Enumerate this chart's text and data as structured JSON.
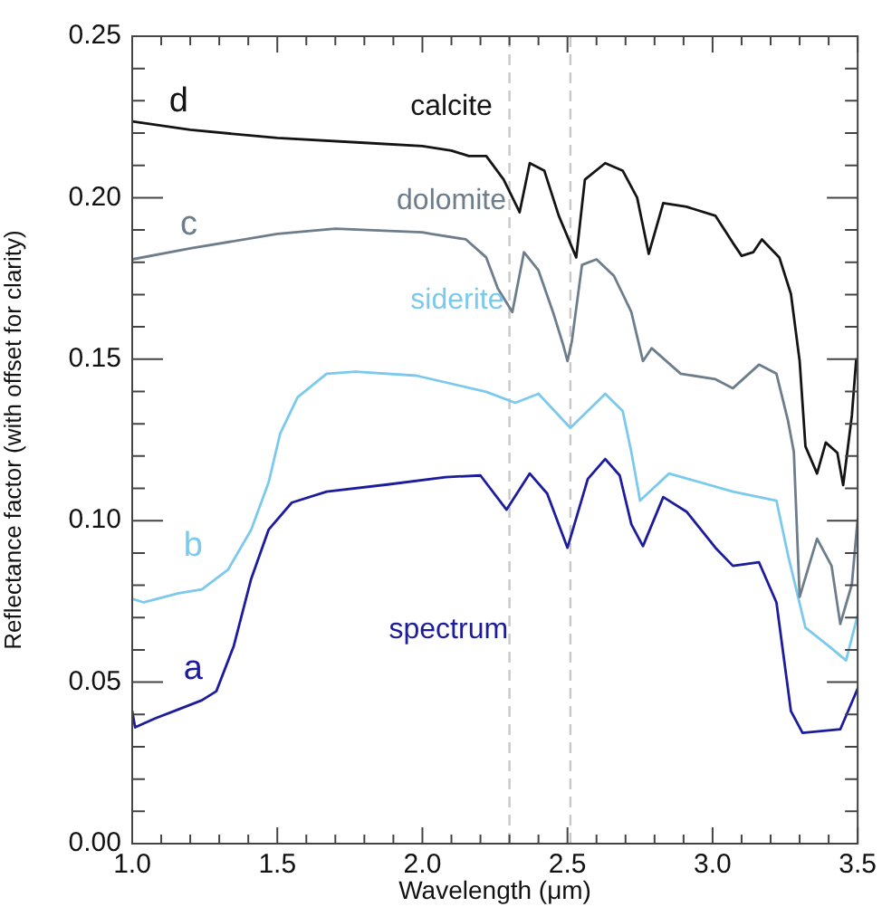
{
  "chart_data": {
    "type": "line",
    "xlabel": "Wavelength (μm)",
    "ylabel": "Reflectance factor (with offset for clarity)",
    "xlim": [
      1.0,
      3.5
    ],
    "ylim": [
      0,
      0.25
    ],
    "xticks": [
      {
        "value": 1,
        "label": "1.0"
      },
      {
        "value": 1.1,
        "label": null
      },
      {
        "value": 1.2,
        "label": null
      },
      {
        "value": 1.3,
        "label": null
      },
      {
        "value": 1.4,
        "label": null
      },
      {
        "value": 1.5,
        "label": "1.5"
      },
      {
        "value": 1.6,
        "label": null
      },
      {
        "value": 1.7,
        "label": null
      },
      {
        "value": 1.8,
        "label": null
      },
      {
        "value": 1.9,
        "label": null
      },
      {
        "value": 2,
        "label": "2.0"
      },
      {
        "value": 2.1,
        "label": null
      },
      {
        "value": 2.2,
        "label": null
      },
      {
        "value": 2.3,
        "label": null
      },
      {
        "value": 2.4,
        "label": null
      },
      {
        "value": 2.5,
        "label": "2.5"
      },
      {
        "value": 2.6,
        "label": null
      },
      {
        "value": 2.7,
        "label": null
      },
      {
        "value": 2.8,
        "label": null
      },
      {
        "value": 2.9,
        "label": null
      },
      {
        "value": 3,
        "label": "3.0"
      },
      {
        "value": 3.1,
        "label": null
      },
      {
        "value": 3.2,
        "label": null
      },
      {
        "value": 3.3,
        "label": null
      },
      {
        "value": 3.4,
        "label": null
      },
      {
        "value": 3.5,
        "label": "3.5"
      }
    ],
    "yticks": [
      {
        "value": 0,
        "label": "0.00"
      },
      {
        "value": 0.01,
        "label": null
      },
      {
        "value": 0.02,
        "label": null
      },
      {
        "value": 0.03,
        "label": null
      },
      {
        "value": 0.04,
        "label": null
      },
      {
        "value": 0.05,
        "label": "0.05"
      },
      {
        "value": 0.06,
        "label": null
      },
      {
        "value": 0.07,
        "label": null
      },
      {
        "value": 0.08,
        "label": null
      },
      {
        "value": 0.09,
        "label": null
      },
      {
        "value": 0.1,
        "label": "0.10"
      },
      {
        "value": 0.11,
        "label": null
      },
      {
        "value": 0.12,
        "label": null
      },
      {
        "value": 0.13,
        "label": null
      },
      {
        "value": 0.14,
        "label": null
      },
      {
        "value": 0.15,
        "label": "0.15"
      },
      {
        "value": 0.16,
        "label": null
      },
      {
        "value": 0.17,
        "label": null
      },
      {
        "value": 0.18,
        "label": null
      },
      {
        "value": 0.19,
        "label": null
      },
      {
        "value": 0.2,
        "label": "0.20"
      },
      {
        "value": 0.21,
        "label": null
      },
      {
        "value": 0.22,
        "label": null
      },
      {
        "value": 0.23,
        "label": null
      },
      {
        "value": 0.24,
        "label": null
      },
      {
        "value": 0.25,
        "label": "0.25"
      }
    ],
    "legend": false,
    "marker": "none",
    "line_style": "solid",
    "ref_lines": [
      {
        "axis": "x",
        "value": 2.3,
        "color": "#c8c8c8",
        "line_style": "dashed"
      },
      {
        "axis": "x",
        "value": 2.51,
        "color": "#c8c8c8",
        "line_style": "dashed"
      }
    ],
    "annotations": [
      "d",
      "c",
      "b",
      "a"
    ],
    "series": [
      {
        "name": "calcite",
        "color": "#141414",
        "x": [
          1.0,
          1.2,
          1.5,
          1.8,
          2.0,
          2.1,
          2.16,
          2.22,
          2.28,
          2.335,
          2.37,
          2.42,
          2.47,
          2.53,
          2.56,
          2.63,
          2.69,
          2.74,
          2.78,
          2.83,
          2.91,
          3.01,
          3.07,
          3.1,
          3.14,
          3.17,
          3.23,
          3.27,
          3.3,
          3.32,
          3.36,
          3.39,
          3.43,
          3.45,
          3.48,
          3.495
        ],
        "values": [
          0.2236,
          0.221,
          0.2185,
          0.217,
          0.216,
          0.2146,
          0.2129,
          0.2129,
          0.2056,
          0.1955,
          0.2107,
          0.2084,
          0.1944,
          0.1815,
          0.2056,
          0.2107,
          0.2084,
          0.2,
          0.1826,
          0.1983,
          0.1972,
          0.1944,
          0.186,
          0.182,
          0.1831,
          0.1871,
          0.1815,
          0.1702,
          0.1494,
          0.123,
          0.1146,
          0.1242,
          0.121,
          0.111,
          0.1326,
          0.15
        ]
      },
      {
        "name": "dolomite",
        "color": "#6d7d8b",
        "x": [
          1.0,
          1.2,
          1.5,
          1.7,
          2.0,
          2.03,
          2.15,
          2.22,
          2.26,
          2.31,
          2.35,
          2.4,
          2.45,
          2.485,
          2.5,
          2.515,
          2.55,
          2.6,
          2.66,
          2.72,
          2.76,
          2.79,
          2.89,
          3.01,
          3.07,
          3.16,
          3.22,
          3.26,
          3.28,
          3.3,
          3.36,
          3.41,
          3.44,
          3.48,
          3.5
        ],
        "values": [
          0.1809,
          0.1843,
          0.1888,
          0.1904,
          0.1893,
          0.1888,
          0.1871,
          0.1815,
          0.1719,
          0.1646,
          0.1831,
          0.1775,
          0.1646,
          0.1545,
          0.1494,
          0.1555,
          0.1792,
          0.1809,
          0.1758,
          0.1646,
          0.1494,
          0.1534,
          0.1455,
          0.1438,
          0.141,
          0.1483,
          0.1455,
          0.1309,
          0.1213,
          0.0764,
          0.0944,
          0.086,
          0.068,
          0.0803,
          0.1006
        ]
      },
      {
        "name": "siderite",
        "color": "#7cc9ee",
        "x": [
          1.0,
          1.04,
          1.16,
          1.24,
          1.33,
          1.41,
          1.47,
          1.51,
          1.57,
          1.67,
          1.77,
          1.98,
          2.22,
          2.32,
          2.4,
          2.51,
          2.63,
          2.69,
          2.72,
          2.75,
          2.85,
          3.07,
          3.22,
          3.26,
          3.32,
          3.4,
          3.46,
          3.5
        ],
        "values": [
          0.0758,
          0.0747,
          0.0775,
          0.0787,
          0.0848,
          0.0972,
          0.1118,
          0.127,
          0.1382,
          0.1455,
          0.1461,
          0.1449,
          0.1399,
          0.1365,
          0.1393,
          0.1287,
          0.1393,
          0.134,
          0.1213,
          0.1062,
          0.1146,
          0.109,
          0.1062,
          0.0893,
          0.0669,
          0.0612,
          0.0567,
          0.0708
        ]
      },
      {
        "name": "spectrum",
        "color": "#1c1c9c",
        "x": [
          1.0,
          1.01,
          1.08,
          1.16,
          1.24,
          1.29,
          1.35,
          1.41,
          1.47,
          1.55,
          1.67,
          1.88,
          2.08,
          2.2,
          2.29,
          2.37,
          2.43,
          2.5,
          2.57,
          2.63,
          2.68,
          2.72,
          2.76,
          2.83,
          2.91,
          3.01,
          3.07,
          3.16,
          3.22,
          3.27,
          3.31,
          3.44,
          3.5
        ],
        "values": [
          0.041,
          0.036,
          0.0388,
          0.0416,
          0.0444,
          0.0472,
          0.0612,
          0.082,
          0.0972,
          0.1056,
          0.109,
          0.1112,
          0.1135,
          0.114,
          0.1034,
          0.1146,
          0.1084,
          0.0916,
          0.1129,
          0.1191,
          0.114,
          0.0989,
          0.0921,
          0.1073,
          0.1028,
          0.0916,
          0.086,
          0.0871,
          0.0747,
          0.041,
          0.0343,
          0.0354,
          0.048
        ]
      }
    ]
  }
}
